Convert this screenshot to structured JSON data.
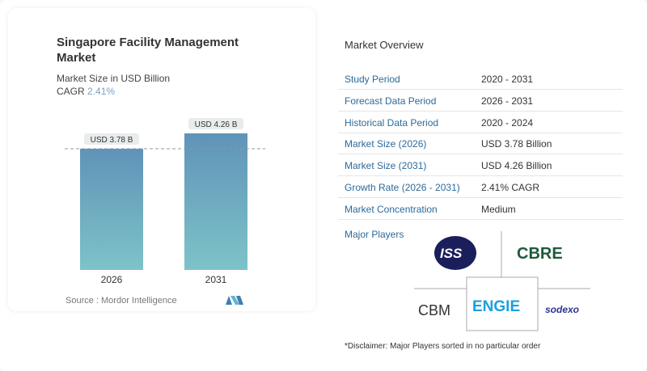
{
  "chart_data": {
    "type": "bar",
    "title": "Singapore Facility Management Market",
    "subtitle": "Market Size in USD Billion",
    "cagr_label": "CAGR",
    "cagr_value": "2.41%",
    "categories": [
      "2026",
      "2031"
    ],
    "values": [
      3.78,
      4.26
    ],
    "data_labels": [
      "USD 3.78 B",
      "USD 4.26 B"
    ],
    "ylim": [
      0,
      4.26
    ],
    "grid": false,
    "bar_color_top": "#5f93b8",
    "bar_color_bottom": "#7ec3c8",
    "source": "Source :  Mordor Intelligence"
  },
  "overview": {
    "title": "Market Overview",
    "rows": [
      {
        "label": "Study Period",
        "value": "2020 - 2031"
      },
      {
        "label": "Forecast Data Period",
        "value": "2026 - 2031"
      },
      {
        "label": "Historical Data Period",
        "value": "2020 - 2024"
      },
      {
        "label": "Market Size (2026)",
        "value": "USD 3.78 Billion"
      },
      {
        "label": "Market Size (2031)",
        "value": "USD 4.26 Billion"
      },
      {
        "label": "Growth Rate (2026 - 2031)",
        "value": "2.41% CAGR"
      },
      {
        "label": "Market Concentration",
        "value": "Medium"
      }
    ],
    "major_players_label": "Major Players",
    "players": [
      "ISS",
      "CBRE",
      "CBM",
      "ENGIE",
      "sodexo"
    ],
    "disclaimer": "*Disclaimer: Major Players sorted in no particular order"
  }
}
